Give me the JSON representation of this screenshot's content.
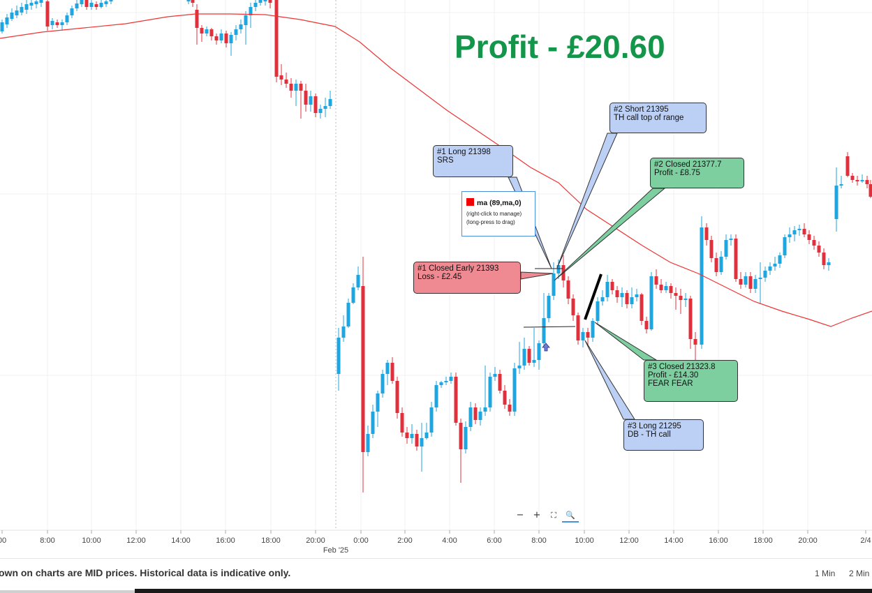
{
  "chart_data": {
    "type": "candlestick",
    "title": "Profit - £20.60",
    "x_tick_labels": [
      "00",
      "8:00",
      "10:00",
      "12:00",
      "14:00",
      "16:00",
      "18:00",
      "20:00",
      "0:00",
      "2:00",
      "4:00",
      "6:00",
      "8:00",
      "10:00",
      "12:00",
      "14:00",
      "16:00",
      "18:00",
      "20:00",
      "2/4"
    ],
    "date_label": "Feb '25",
    "indicator": "ma (89,ma,0)",
    "indicator_hints": [
      "(right-click to manage)",
      "(long-press to drag)"
    ],
    "colors": {
      "up": "#1da6e0",
      "down": "#e0303c",
      "ma": "#ee3333",
      "profit": "#14964a"
    },
    "grid": true,
    "annotations": [
      {
        "id": "long1",
        "lines": [
          "#1 Long 21398",
          "SRS"
        ],
        "style": "blue"
      },
      {
        "id": "short2",
        "lines": [
          "#2 Short 21395",
          "TH call top of range"
        ],
        "style": "blue"
      },
      {
        "id": "closed2",
        "lines": [
          "#2 Closed 21377.7",
          "Profit  - £8.75"
        ],
        "style": "green"
      },
      {
        "id": "closed1",
        "lines": [
          "#1 Closed Early 21393",
          "Loss - £2.45"
        ],
        "style": "red"
      },
      {
        "id": "closed3",
        "lines": [
          "#3 Closed 21323.8",
          "Profit - £14.30",
          "FEAR FEAR"
        ],
        "style": "green"
      },
      {
        "id": "long3",
        "lines": [
          "#3 Long 21295",
          "DB - TH call"
        ],
        "style": "blue"
      }
    ]
  },
  "zoom_controls": [
    "−",
    "+",
    "⛶",
    "🔍"
  ],
  "footer": {
    "disclaimer": "own on charts are MID prices. Historical data is indicative only.",
    "timeframes": [
      "1 Min",
      "2 Min"
    ]
  }
}
